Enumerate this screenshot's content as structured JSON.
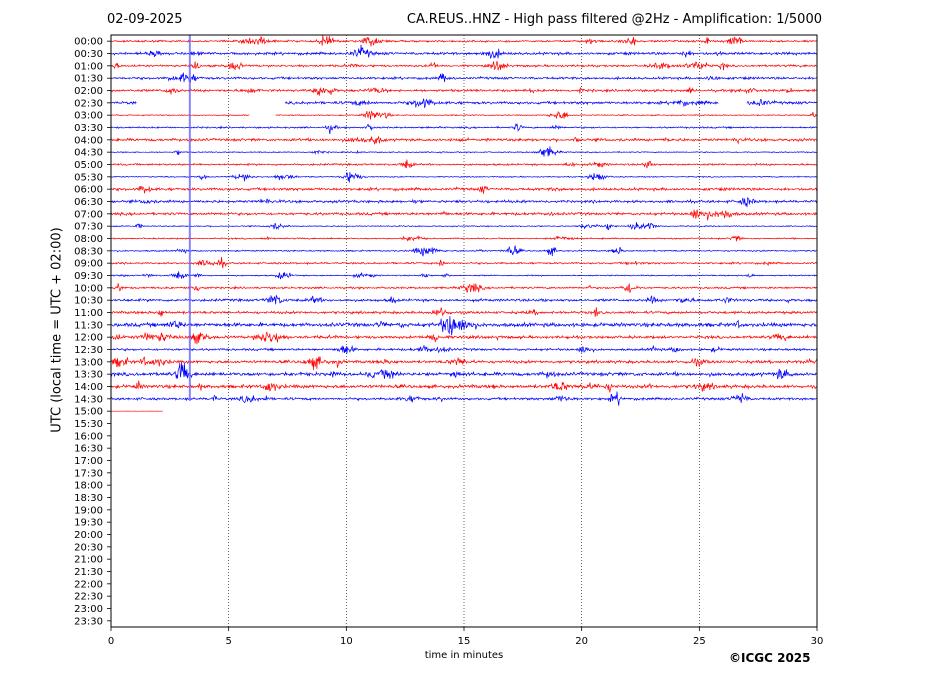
{
  "header": {
    "date": "02-09-2025",
    "title": "CA.REUS..HNZ - High pass filtered @2Hz - Amplification: 1/5000"
  },
  "footer": {
    "copyright": "©ICGC 2025"
  },
  "chart_data": {
    "type": "line",
    "xlabel": "time in minutes",
    "ylabel": "UTC (local time = UTC + 02:00)",
    "xlim": [
      0,
      30
    ],
    "x_ticks": [
      0,
      5,
      10,
      15,
      20,
      25,
      30
    ],
    "grid": "vertical dotted at 5-minute intervals",
    "row_labels": [
      "00:00",
      "00:30",
      "01:00",
      "01:30",
      "02:00",
      "02:30",
      "03:00",
      "03:30",
      "04:00",
      "04:30",
      "05:00",
      "05:30",
      "06:00",
      "06:30",
      "07:00",
      "07:30",
      "08:00",
      "08:30",
      "09:00",
      "09:30",
      "10:00",
      "10:30",
      "11:00",
      "11:30",
      "12:00",
      "12:30",
      "13:00",
      "13:30",
      "14:00",
      "14:30",
      "15:00",
      "15:30",
      "16:00",
      "16:30",
      "17:00",
      "17:30",
      "18:00",
      "18:30",
      "19:00",
      "19:30",
      "20:00",
      "20:30",
      "21:00",
      "21:30",
      "22:00",
      "22:30",
      "23:00",
      "23:30"
    ],
    "trace_colors": [
      "#ff0000",
      "#0000ff"
    ],
    "recorded_until": {
      "row": "15:00",
      "minutes": 2.2
    },
    "gaps": [
      {
        "row": "02:30",
        "start": 1.1,
        "end": 7.4
      },
      {
        "row": "02:30",
        "start": 25.8,
        "end": 27.0
      },
      {
        "row": "03:00",
        "start": 5.9,
        "end": 7.0
      }
    ],
    "marker_line": {
      "minutes": 3.35,
      "from_row": "00:00",
      "to_row": "14:30",
      "color": "#6666ff"
    }
  }
}
